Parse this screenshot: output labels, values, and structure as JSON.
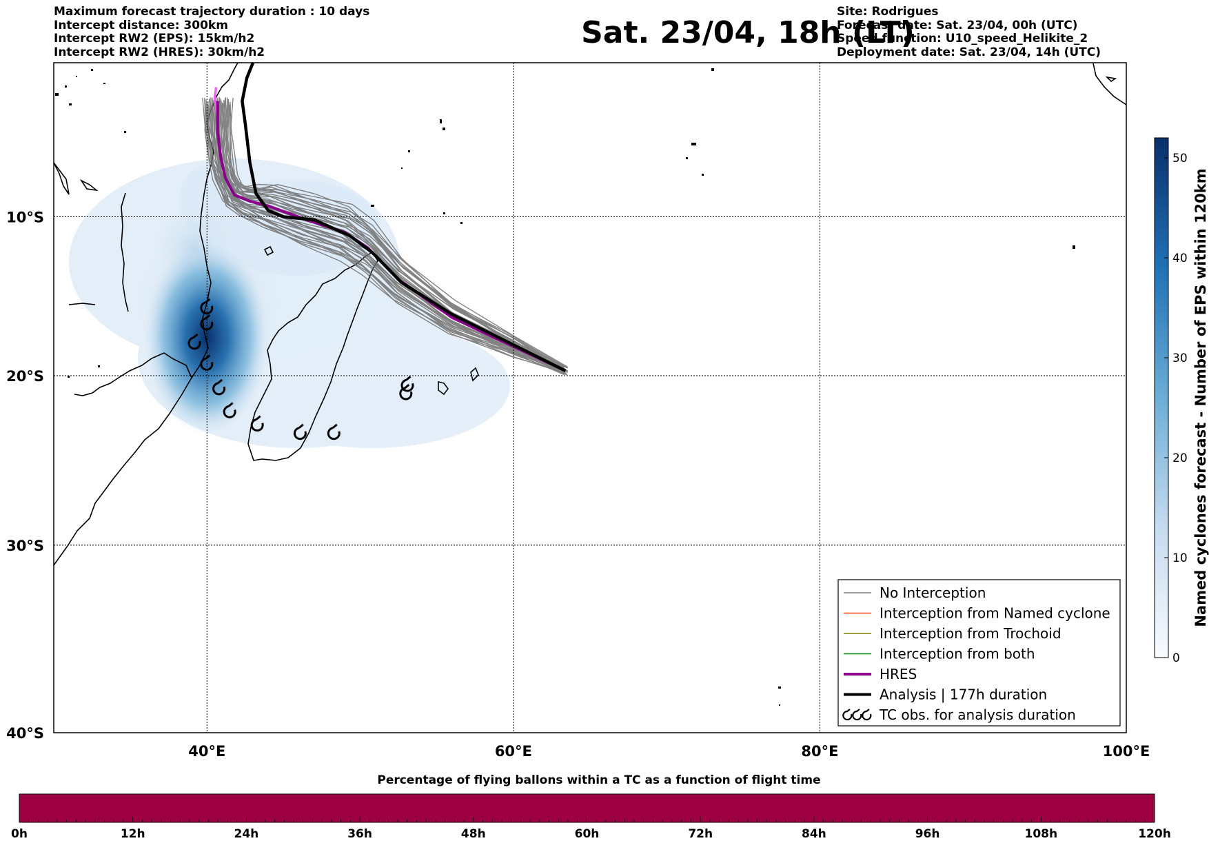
{
  "header": {
    "left_lines": [
      "Maximum forecast trajectory duration : 10 days",
      "Intercept distance: 300km",
      "Intercept RW2 (EPS):  15km/h2",
      "Intercept RW2 (HRES): 30km/h2"
    ],
    "title": "Sat. 23/04, 18h (LT)",
    "right_lines": [
      "Site: Rodrigues",
      "Forecast date: Sat. 23/04, 00h (UTC)",
      "Speed function: U10_speed_Helikite_2",
      "Deployment date: Sat. 23/04, 14h (UTC)"
    ]
  },
  "map": {
    "lon_range": [
      30,
      100
    ],
    "lat_range": [
      -40,
      0
    ],
    "lon_ticks": [
      {
        "value": 40,
        "label": "40°E"
      },
      {
        "value": 60,
        "label": "60°E"
      },
      {
        "value": 80,
        "label": "80°E"
      },
      {
        "value": 100,
        "label": "100°E"
      }
    ],
    "lat_ticks": [
      {
        "value": -10,
        "label": "10°S"
      },
      {
        "value": -20,
        "label": "20°S"
      },
      {
        "value": -30,
        "label": "30°S"
      },
      {
        "value": -40,
        "label": "40°S"
      }
    ],
    "grid": "dotted",
    "launch_point": {
      "lon": 63.4,
      "lat": -19.7
    },
    "hres_track": [
      [
        63.4,
        -19.7
      ],
      [
        60,
        -18.2
      ],
      [
        56,
        -16.4
      ],
      [
        52.5,
        -14
      ],
      [
        50.5,
        -12
      ],
      [
        49,
        -11
      ],
      [
        46.5,
        -10.2
      ],
      [
        44,
        -9.3
      ],
      [
        42.8,
        -9
      ],
      [
        41.8,
        -8.6
      ],
      [
        41.2,
        -7.5
      ],
      [
        40.9,
        -6.2
      ],
      [
        40.7,
        -4.5
      ],
      [
        40.7,
        -2.5
      ]
    ],
    "hres_color": "#8b008b",
    "analysis_track": [
      [
        63.4,
        -19.7
      ],
      [
        60,
        -18.1
      ],
      [
        56,
        -16.2
      ],
      [
        52.7,
        -14.2
      ],
      [
        50.8,
        -12.3
      ],
      [
        49.3,
        -11.2
      ],
      [
        47,
        -10.2
      ],
      [
        45,
        -10
      ],
      [
        44,
        -9.6
      ],
      [
        43.2,
        -8.5
      ],
      [
        42.8,
        -6.5
      ],
      [
        42.5,
        -4
      ],
      [
        42.3,
        -2.5
      ],
      [
        42.6,
        -1
      ],
      [
        43,
        0
      ]
    ],
    "analysis_color": "#000000",
    "eps_color": "#6e6e6e",
    "eps_count": 40,
    "pink_track": [
      [
        40.7,
        -3.6
      ],
      [
        40.6,
        -3
      ],
      [
        40.5,
        -2.3
      ],
      [
        40.6,
        -1.6
      ]
    ],
    "tc_observations": [
      [
        40,
        -15.8
      ],
      [
        40,
        -16.8
      ],
      [
        39.2,
        -18
      ],
      [
        40,
        -19.3
      ],
      [
        40.8,
        -20.8
      ],
      [
        41.5,
        -22.2
      ],
      [
        43.3,
        -23
      ],
      [
        46.1,
        -23.5
      ],
      [
        48.3,
        -23.5
      ],
      [
        53,
        -21.1
      ],
      [
        53.1,
        -20.6
      ]
    ],
    "density_color_max": "#08306b"
  },
  "legend": {
    "items": [
      {
        "label": "No Interception",
        "color": "#7f7f7f",
        "width": 1.5
      },
      {
        "label": "Interception from Named cyclone",
        "color": "#ff4500",
        "width": 1.5
      },
      {
        "label": "Interception from Trochoid",
        "color": "#808000",
        "width": 1.5
      },
      {
        "label": "Interception from both",
        "color": "#008000",
        "width": 1.5
      },
      {
        "label": "HRES",
        "color": "#8b008b",
        "width": 4
      },
      {
        "label": "Analysis | 177h duration",
        "color": "#000000",
        "width": 4
      },
      {
        "label": "TC obs. for analysis duration",
        "color": "#000000",
        "width": 0
      }
    ]
  },
  "colorbar_right": {
    "label": "Named cyclones forecast - Number of EPS within 120km",
    "min": 0,
    "max": 52,
    "ticks": [
      "0",
      "10",
      "20",
      "30",
      "40",
      "50"
    ],
    "tick_values": [
      0,
      10,
      20,
      30,
      40,
      50
    ],
    "color_low": "#f7fbff",
    "color_high": "#08306b"
  },
  "colorbar_bottom": {
    "title": "Percentage of flying ballons within a TC as a function of flight time",
    "fill_color": "#9e0142",
    "ticks": [
      "0h",
      "12h",
      "24h",
      "36h",
      "48h",
      "60h",
      "72h",
      "84h",
      "96h",
      "108h",
      "120h"
    ]
  }
}
